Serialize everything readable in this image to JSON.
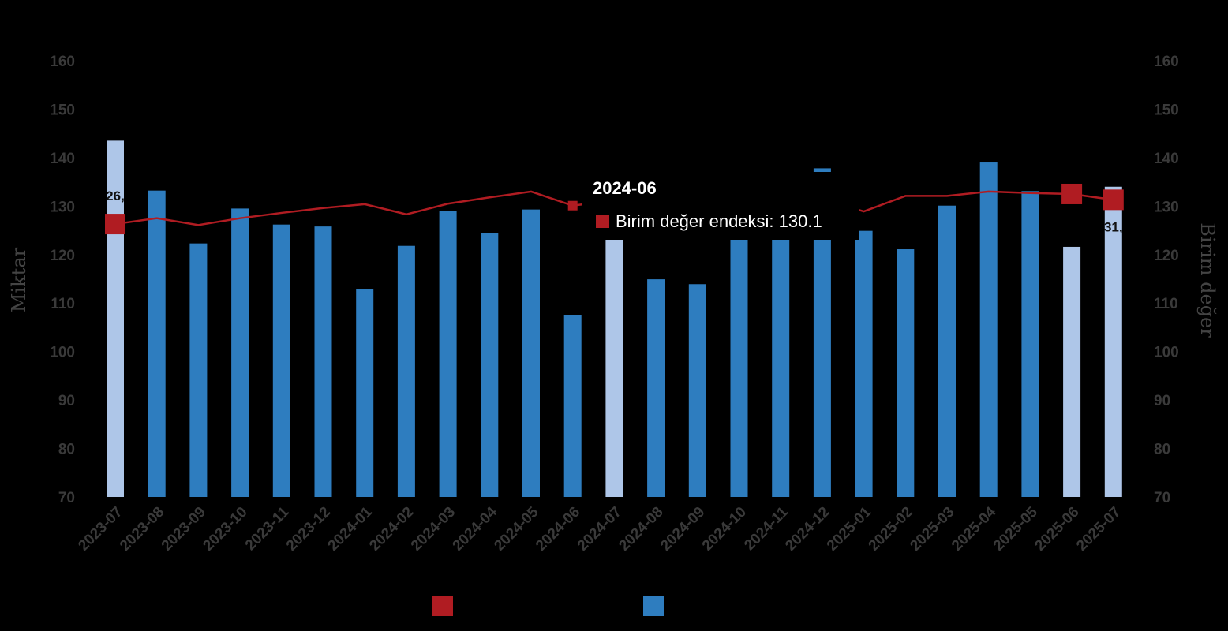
{
  "chart_data": {
    "type": "bar",
    "categories": [
      "2023-07",
      "2023-08",
      "2023-09",
      "2023-10",
      "2023-11",
      "2023-12",
      "2024-01",
      "2024-02",
      "2024-03",
      "2024-04",
      "2024-05",
      "2024-06",
      "2024-07",
      "2024-08",
      "2024-09",
      "2024-10",
      "2024-11",
      "2024-12",
      "2025-01",
      "2025-02",
      "2025-03",
      "2025-04",
      "2025-05",
      "2025-06",
      "2025-07"
    ],
    "y_left": {
      "label": "Miktar",
      "min": 70,
      "max": 160,
      "ticks": [
        70,
        80,
        90,
        100,
        110,
        120,
        130,
        140,
        150,
        160
      ]
    },
    "y_right": {
      "label": "Birim değer",
      "min": 70,
      "max": 160,
      "ticks": [
        70,
        80,
        90,
        100,
        110,
        120,
        130,
        140,
        150,
        160
      ]
    },
    "series": [
      {
        "type": "bar",
        "axis": "left",
        "color": "#2e7dbf",
        "highlight_color": "#aec6e8",
        "highlighted": [
          "2023-07",
          "2024-07",
          "2025-06",
          "2025-07"
        ],
        "values": [
          143.5,
          133.2,
          122.3,
          129.5,
          126.2,
          125.8,
          112.8,
          121.8,
          129.0,
          124.4,
          129.3,
          107.5,
          125.0,
          114.9,
          113.9,
          124.0,
          125.0,
          137.8,
          124.9,
          121.1,
          130.1,
          139.0,
          133.1,
          121.6,
          134.0
        ]
      },
      {
        "type": "line",
        "name": "Birim değer endeksi",
        "axis": "right",
        "color": "#b01c22",
        "markers_at": [
          "2023-07",
          "2024-06",
          "2024-07",
          "2025-06",
          "2025-07"
        ],
        "values": [
          126.3,
          127.5,
          126.1,
          127.5,
          128.6,
          129.6,
          130.4,
          128.3,
          130.5,
          131.8,
          133.0,
          130.1,
          131.2,
          132.1,
          133.6,
          133.1,
          133.6,
          131.4,
          128.9,
          132.1,
          132.1,
          133.0,
          132.7,
          132.5,
          131.3
        ]
      }
    ],
    "data_labels": [
      {
        "category": "2023-07",
        "text": "26,"
      },
      {
        "category": "2024-07",
        "text": "127"
      },
      {
        "category": "2025-07",
        "text": "31,"
      }
    ],
    "legend": {
      "placement": "bottom",
      "colors": [
        "#b01c22",
        "#2e7dbf"
      ]
    },
    "tooltip": {
      "title": "2024-06",
      "series_name": "Birim değer endeksi",
      "text": "Birim değer endeksi: 130.1",
      "color": "#b01c22"
    }
  }
}
